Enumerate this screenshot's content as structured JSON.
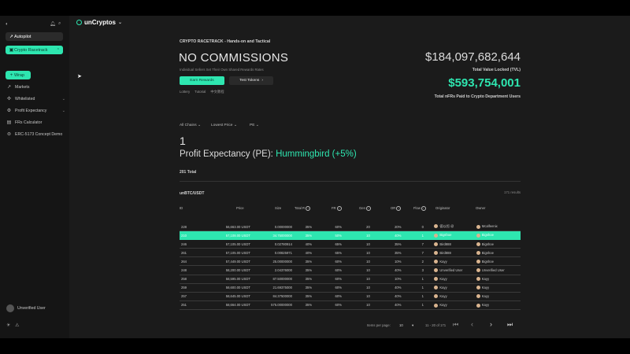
{
  "sidebar": {
    "collapse_icon": "collapse-icon",
    "bell_icon": "bell-icon",
    "search_icon": "search-icon",
    "autopilot_label": "Autopilot",
    "racetrack_label": "Crypto Racetrack",
    "wrap_label": "Wrap",
    "items": [
      {
        "label": "Markets"
      },
      {
        "label": "Whitelisted"
      },
      {
        "label": "Profit Expectancy"
      },
      {
        "label": "FRs Calculator"
      },
      {
        "label": "ERC-5173 Concept Demo"
      }
    ],
    "user_label": "Unverified User"
  },
  "brand": "unCryptos",
  "page": {
    "section_title": "CRYPTO RACETRACK - Hands-on and Tactical",
    "heading": "NO COMMISSIONS",
    "subheading": "Individual Sellers Set Their Own Shared Rewards Rates",
    "earn_button": "Earn Rewards",
    "test_button": "Test Tokens",
    "links": [
      "Lottery",
      "Tutorial",
      "中文教程"
    ],
    "tvl_value": "$184,097,682,644",
    "tvl_label": "Total Value Locked (TVL)",
    "nfr_value": "$593,754,001",
    "nfr_label": "Total nFRs Paid to Crypto Department Users",
    "filters": [
      "All Chains",
      "Lowest Price",
      "PE"
    ],
    "big_number": "1",
    "pe_prefix": "Profit Expectancy (PE):",
    "pe_value": "Hummingbird (+5%)",
    "total_label": "201 Total",
    "pair": "unBTC/USDT",
    "results": "171 results"
  },
  "table": {
    "headers": [
      "ID",
      "Price",
      "Size",
      "Total R",
      "FR",
      "Gen",
      "OR",
      "Flow",
      "Originator",
      "Owner"
    ],
    "rows": [
      {
        "id": "228",
        "price": "56,663.00 USDT",
        "size": "0.00000000",
        "total": "35%",
        "fr": "60%",
        "gen": "20",
        "or": "20%",
        "flow": "0",
        "orig": "德以恒 @",
        "owner": "Mcalfeenix",
        "hl": false
      },
      {
        "id": "210",
        "price": "57,108.00 USDT",
        "size": "34.75000000",
        "total": "35%",
        "fr": "50%",
        "gen": "10",
        "or": "40%",
        "flow": "1",
        "orig": "Bigshoe",
        "owner": "Bigshoe",
        "hl": true
      },
      {
        "id": "246",
        "price": "57,105.00 USDT",
        "size": "0.02780914",
        "total": "40%",
        "fr": "65%",
        "gen": "10",
        "or": "35%",
        "flow": "7",
        "orig": "Bird888",
        "owner": "Bigshoe",
        "hl": false
      },
      {
        "id": "261",
        "price": "57,105.00 USDT",
        "size": "0.00825971",
        "total": "40%",
        "fr": "65%",
        "gen": "10",
        "or": "35%",
        "flow": "7",
        "orig": "Bird888",
        "owner": "Bigshoe",
        "hl": false
      },
      {
        "id": "264",
        "price": "57,449.00 USDT",
        "size": "25.00000000",
        "total": "35%",
        "fr": "60%",
        "gen": "10",
        "or": "10%",
        "flow": "2",
        "orig": "Kayy",
        "owner": "Bigshoe",
        "hl": false
      },
      {
        "id": "248",
        "price": "58,200.00 USDT",
        "size": "2.04376000",
        "total": "35%",
        "fr": "60%",
        "gen": "10",
        "or": "40%",
        "flow": "3",
        "orig": "Unverified User",
        "owner": "Unverified User",
        "hl": false
      },
      {
        "id": "258",
        "price": "58,595.00 USDT",
        "size": "87.50000000",
        "total": "35%",
        "fr": "60%",
        "gen": "10",
        "or": "10%",
        "flow": "1",
        "orig": "Kayy",
        "owner": "Kayy",
        "hl": false
      },
      {
        "id": "259",
        "price": "58,600.00 USDT",
        "size": "21.69375000",
        "total": "35%",
        "fr": "60%",
        "gen": "10",
        "or": "40%",
        "flow": "1",
        "orig": "Kayy",
        "owner": "Kayy",
        "hl": false
      },
      {
        "id": "257",
        "price": "58,645.00 USDT",
        "size": "84.37500000",
        "total": "35%",
        "fr": "60%",
        "gen": "10",
        "or": "40%",
        "flow": "1",
        "orig": "Kayy",
        "owner": "Kayy",
        "hl": false
      },
      {
        "id": "251",
        "price": "58,664.00 USDT",
        "size": "575.00000000",
        "total": "35%",
        "fr": "60%",
        "gen": "10",
        "or": "40%",
        "flow": "1",
        "orig": "Kayy",
        "owner": "Kayy",
        "hl": false
      }
    ]
  },
  "pagination": {
    "items_label": "Items per page:",
    "per_page": "10",
    "range": "11 - 20 of 171"
  },
  "colors": {
    "accent": "#2ee6b0",
    "background": "#1b1b1b",
    "sidebar": "#151515"
  }
}
